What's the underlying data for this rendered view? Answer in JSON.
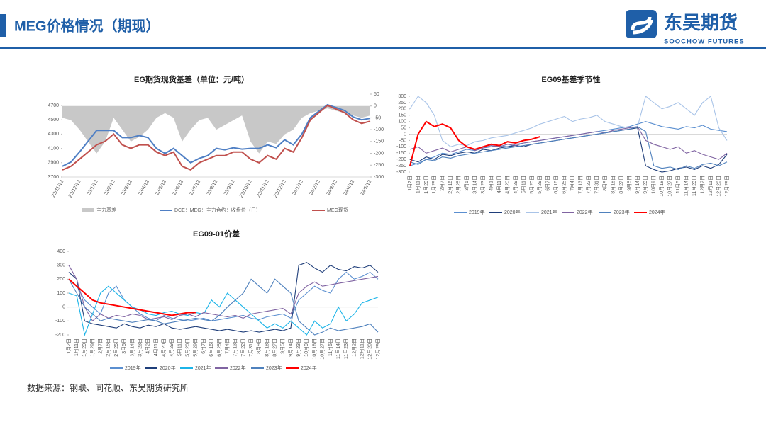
{
  "header": {
    "title": "MEG价格情况（期现）",
    "logo_cn": "东吴期货",
    "logo_en": "SOOCHOW FUTURES"
  },
  "source": "数据来源：钢联、同花顺、东吴期货研究所",
  "chart_data": [
    {
      "type": "line",
      "title": "EG期货现货基差（单位：元/吨）",
      "categories": [
        "22/11/12",
        null,
        "22/12/12",
        null,
        "23/1/12",
        null,
        "23/2/12",
        null,
        "23/3/12",
        null,
        "23/4/12",
        null,
        "23/5/12",
        null,
        "23/6/12",
        null,
        "23/7/12",
        null,
        "23/8/12",
        null,
        "23/9/12",
        null,
        "23/10/12",
        null,
        "23/11/12",
        null,
        "23/12/12",
        null,
        "24/1/12",
        null,
        "24/2/12",
        null,
        "24/3/12",
        null,
        "24/4/12",
        null,
        "24/5/12"
      ],
      "ylim": [
        3700,
        4700
      ],
      "yticks": [
        3700,
        3900,
        4100,
        4300,
        4500,
        4700
      ],
      "y2lim": [
        -300,
        50
      ],
      "y2ticks": [
        50,
        0,
        -50,
        -100,
        -150,
        -200,
        -250,
        -300
      ],
      "grid": false,
      "series": [
        {
          "name": "主力基差",
          "color": "#c8c8c8",
          "axis": "y2",
          "kind": "area",
          "values": [
            -50,
            -60,
            -100,
            -150,
            -200,
            -150,
            -50,
            -100,
            -150,
            -130,
            -100,
            -50,
            -30,
            -50,
            -150,
            -100,
            -60,
            -50,
            -100,
            -80,
            -60,
            -40,
            -150,
            -200,
            -150,
            -160,
            -120,
            -100,
            -50,
            -30,
            -20,
            -10,
            -20,
            -30,
            -40,
            -50,
            -40
          ]
        },
        {
          "name": "DCE：MEG：主力合约：收盘价（日）",
          "color": "#4f7fc4",
          "values": [
            3850,
            3910,
            4050,
            4200,
            4350,
            4350,
            4350,
            4250,
            4250,
            4280,
            4250,
            4100,
            4030,
            4100,
            4000,
            3900,
            3960,
            4000,
            4100,
            4080,
            4110,
            4090,
            4100,
            4100,
            4150,
            4110,
            4220,
            4150,
            4300,
            4530,
            4620,
            4710,
            4670,
            4630,
            4540,
            4500,
            4520
          ]
        },
        {
          "name": "MEG现货",
          "color": "#c0504d",
          "values": [
            3800,
            3850,
            3950,
            4050,
            4150,
            4200,
            4300,
            4150,
            4100,
            4150,
            4150,
            4050,
            4000,
            4050,
            3850,
            3800,
            3900,
            3950,
            4000,
            4000,
            4050,
            4050,
            3950,
            3900,
            4000,
            3950,
            4100,
            4050,
            4250,
            4500,
            4600,
            4700,
            4650,
            4600,
            4500,
            4450,
            4480
          ]
        }
      ]
    },
    {
      "type": "line",
      "title": "EG09基差季节性",
      "categories": [
        "1月2日",
        "1月11日",
        "1月20日",
        "1月29日",
        "2月7日",
        "2月16日",
        "2月25日",
        "3月5日",
        "3月14日",
        "3月23日",
        "4月1日",
        "4月11日",
        "4月20日",
        "4月29日",
        "5月11日",
        "5月20日",
        "5月29日",
        "6月7日",
        "6月16日",
        "6月25日",
        "7月4日",
        "7月13日",
        "7月22日",
        "7月31日",
        "8月9日",
        "8月18日",
        "8月27日",
        "9月5日",
        "9月14日",
        "9月23日",
        "10月9日",
        "10月18日",
        "10月27日",
        "11月5日",
        "11月14日",
        "11月23日",
        "12月2日",
        "12月11日",
        "12月20日",
        "12月29日"
      ],
      "ylim": [
        -300,
        300
      ],
      "yticks": [
        300,
        250,
        200,
        150,
        100,
        50,
        0,
        -50,
        -100,
        -150,
        -200,
        -250,
        -300
      ],
      "grid": false,
      "series": [
        {
          "name": "2019年",
          "color": "#5b8fd0",
          "values": [
            -250,
            -230,
            -200,
            -180,
            -150,
            -160,
            -140,
            -120,
            -130,
            -110,
            -100,
            -90,
            -100,
            -80,
            -70,
            -60,
            -50,
            -40,
            -30,
            -20,
            -10,
            0,
            10,
            20,
            30,
            40,
            50,
            60,
            80,
            100,
            80,
            60,
            50,
            40,
            60,
            50,
            70,
            40,
            30,
            20
          ]
        },
        {
          "name": "2020年",
          "color": "#1f3e7a",
          "values": [
            -200,
            -220,
            -180,
            -200,
            -160,
            -170,
            -150,
            -140,
            -150,
            -120,
            -130,
            -110,
            -100,
            -90,
            -100,
            -80,
            -70,
            -60,
            -50,
            -40,
            -30,
            -20,
            -10,
            0,
            10,
            20,
            30,
            40,
            50,
            -250,
            -280,
            -300,
            -290,
            -270,
            -260,
            -280,
            -250,
            -270,
            -240,
            -160
          ]
        },
        {
          "name": "2021年",
          "color": "#a9c4e8",
          "values": [
            200,
            300,
            250,
            150,
            -50,
            -100,
            -80,
            -90,
            -60,
            -50,
            -30,
            -20,
            -10,
            10,
            30,
            50,
            80,
            100,
            120,
            140,
            100,
            120,
            130,
            150,
            100,
            80,
            60,
            50,
            60,
            300,
            250,
            200,
            220,
            250,
            200,
            150,
            250,
            300,
            50,
            -50
          ]
        },
        {
          "name": "2022年",
          "color": "#8064a2",
          "values": [
            -120,
            -100,
            -150,
            -130,
            -110,
            -140,
            -120,
            -100,
            -130,
            -110,
            -90,
            -100,
            -80,
            -90,
            -70,
            -60,
            -50,
            -40,
            -30,
            -20,
            -10,
            0,
            10,
            20,
            10,
            30,
            40,
            50,
            60,
            -50,
            -80,
            -100,
            -120,
            -100,
            -150,
            -130,
            -160,
            -180,
            -200,
            -150
          ]
        },
        {
          "name": "2023年",
          "color": "#4f81bd",
          "values": [
            -220,
            -240,
            -200,
            -210,
            -180,
            -190,
            -170,
            -160,
            -150,
            -140,
            -130,
            -120,
            -110,
            -100,
            -90,
            -80,
            -70,
            -60,
            -50,
            -40,
            -30,
            -20,
            -10,
            0,
            10,
            20,
            30,
            40,
            60,
            20,
            -250,
            -270,
            -260,
            -280,
            -250,
            -270,
            -240,
            -230,
            -250,
            -220
          ]
        },
        {
          "name": "2024年",
          "color": "#ff0000",
          "values": [
            -250,
            0,
            100,
            60,
            80,
            50,
            -50,
            -100,
            -120,
            -100,
            -80,
            -90,
            -60,
            -70,
            -50,
            -40,
            -20,
            null,
            null,
            null,
            null,
            null,
            null,
            null,
            null,
            null,
            null,
            null,
            null,
            null,
            null,
            null,
            null,
            null,
            null,
            null,
            null,
            null,
            null,
            null
          ]
        }
      ]
    },
    {
      "type": "line",
      "title": "EG09-01价差",
      "categories": [
        "1月2日",
        "1月11日",
        "1月20日",
        "1月29日",
        "2月7日",
        "2月16日",
        "2月25日",
        "3月5日",
        "3月14日",
        "3月23日",
        "4月2日",
        "4月11日",
        "4月20日",
        "4月29日",
        "5月11日",
        "5月20日",
        "5月29日",
        "6月7日",
        "6月16日",
        "6月25日",
        "7月4日",
        "7月13日",
        "7月22日",
        "7月31日",
        "8月9日",
        "8月18日",
        "8月27日",
        "9月5日",
        "9月14日",
        "9月23日",
        "10月9日",
        "10月18日",
        "10月27日",
        "11月5日",
        "11月14日",
        "11月23日",
        "12月2日",
        "12月11日",
        "12月20日",
        "12月29日"
      ],
      "ylim": [
        -200,
        400
      ],
      "yticks": [
        400,
        300,
        200,
        100,
        0,
        -100,
        -200
      ],
      "grid": false,
      "series": [
        {
          "name": "2019年",
          "color": "#5b8fd0",
          "values": [
            200,
            150,
            50,
            0,
            -50,
            100,
            150,
            50,
            0,
            -50,
            -80,
            -100,
            -60,
            -80,
            -90,
            -100,
            -90,
            -80,
            -100,
            -90,
            -80,
            -70,
            -60,
            -80,
            -90,
            -70,
            -60,
            -50,
            -80,
            50,
            100,
            150,
            120,
            100,
            200,
            250,
            200,
            220,
            250,
            200
          ]
        },
        {
          "name": "2020年",
          "color": "#1f3e7a",
          "values": [
            250,
            200,
            -100,
            -120,
            -130,
            -140,
            -150,
            -120,
            -140,
            -150,
            -130,
            -140,
            -120,
            -150,
            -160,
            -150,
            -140,
            -150,
            -160,
            -170,
            -160,
            -170,
            -180,
            -170,
            -180,
            -170,
            -160,
            -170,
            -150,
            300,
            320,
            280,
            250,
            300,
            270,
            260,
            290,
            280,
            300,
            250
          ]
        },
        {
          "name": "2021年",
          "color": "#1cb4e8",
          "values": [
            100,
            80,
            -200,
            -50,
            100,
            150,
            100,
            50,
            0,
            -20,
            -50,
            -60,
            -40,
            -30,
            -50,
            -60,
            -40,
            -50,
            50,
            0,
            100,
            50,
            0,
            -50,
            -100,
            -150,
            -120,
            -150,
            -100,
            -150,
            -200,
            -100,
            -150,
            -120,
            0,
            -100,
            -50,
            30,
            50,
            70
          ]
        },
        {
          "name": "2022年",
          "color": "#8064a2",
          "values": [
            300,
            200,
            0,
            -100,
            -50,
            -80,
            -60,
            -70,
            -50,
            -60,
            -90,
            -80,
            -70,
            -90,
            -60,
            -50,
            -70,
            -40,
            -50,
            -60,
            -70,
            -60,
            -80,
            -50,
            -40,
            -30,
            -20,
            -10,
            -50,
            100,
            150,
            180,
            150,
            160,
            170,
            180,
            190,
            200,
            210,
            220
          ]
        },
        {
          "name": "2023年",
          "color": "#4f81bd",
          "values": [
            200,
            100,
            0,
            -50,
            -100,
            -80,
            -90,
            -100,
            -110,
            -100,
            -90,
            -100,
            -120,
            -110,
            -100,
            -90,
            -80,
            -90,
            -100,
            -60,
            0,
            50,
            100,
            200,
            150,
            100,
            200,
            150,
            100,
            -100,
            -150,
            -200,
            -180,
            -150,
            -170,
            -160,
            -150,
            -140,
            -120,
            -180
          ]
        },
        {
          "name": "2024年",
          "color": "#ff0000",
          "values": [
            200,
            150,
            100,
            50,
            30,
            20,
            10,
            0,
            -10,
            -20,
            -30,
            -40,
            -50,
            -60,
            -50,
            -40,
            -40,
            null,
            null,
            null,
            null,
            null,
            null,
            null,
            null,
            null,
            null,
            null,
            null,
            null,
            null,
            null,
            null,
            null,
            null,
            null,
            null,
            null,
            null,
            null
          ]
        }
      ]
    }
  ]
}
